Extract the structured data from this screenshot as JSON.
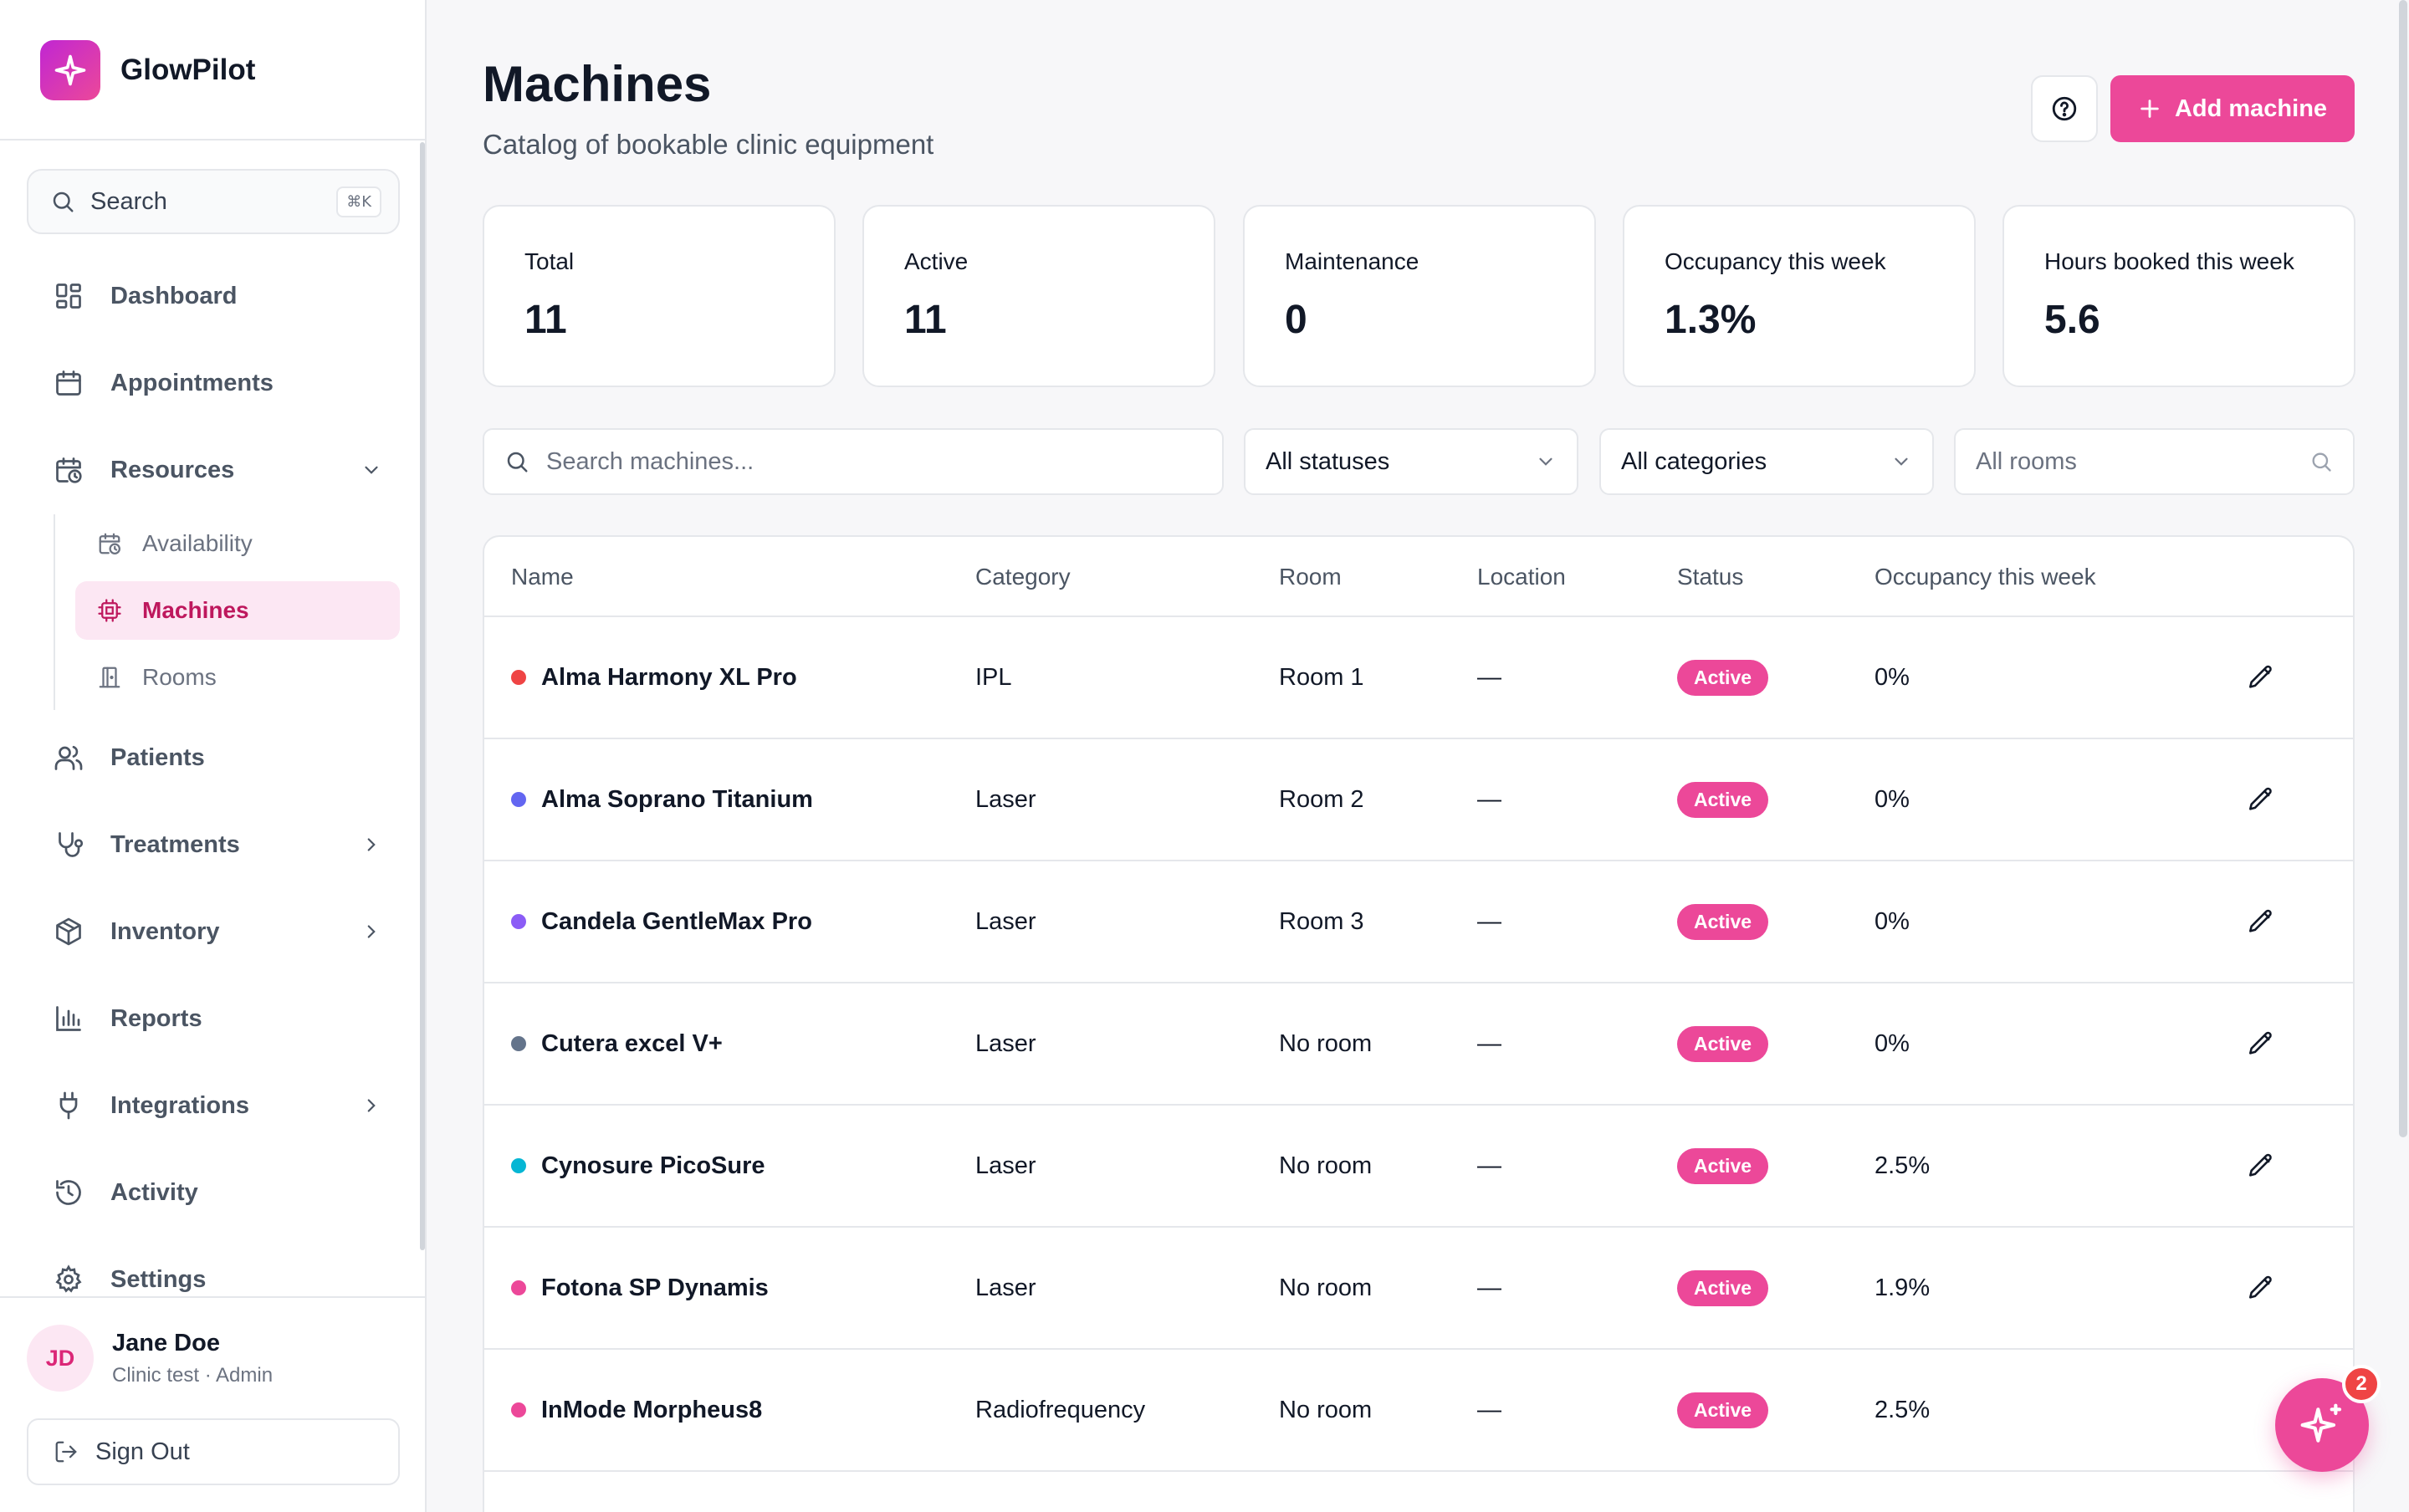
{
  "app": {
    "name": "GlowPilot"
  },
  "sidebar": {
    "search": {
      "label": "Search",
      "shortcut": "⌘K"
    },
    "items": [
      {
        "label": "Dashboard",
        "icon": "dashboard-icon"
      },
      {
        "label": "Appointments",
        "icon": "calendar-icon"
      },
      {
        "label": "Resources",
        "icon": "calendar-clock-icon",
        "expanded": true
      },
      {
        "label": "Patients",
        "icon": "users-icon"
      },
      {
        "label": "Treatments",
        "icon": "stethoscope-icon"
      },
      {
        "label": "Inventory",
        "icon": "package-icon"
      },
      {
        "label": "Reports",
        "icon": "bar-chart-icon"
      },
      {
        "label": "Integrations",
        "icon": "plug-icon"
      },
      {
        "label": "Activity",
        "icon": "history-icon"
      },
      {
        "label": "Settings",
        "icon": "gear-icon"
      }
    ],
    "resources_sub": [
      {
        "label": "Availability",
        "icon": "calendar-clock-icon"
      },
      {
        "label": "Machines",
        "icon": "cpu-icon",
        "active": true
      },
      {
        "label": "Rooms",
        "icon": "door-icon"
      }
    ],
    "user": {
      "initials": "JD",
      "name": "Jane Doe",
      "role": "Clinic test · Admin"
    },
    "signout": "Sign Out"
  },
  "header": {
    "title": "Machines",
    "subtitle": "Catalog of bookable clinic equipment",
    "add_button": "Add machine"
  },
  "stats": [
    {
      "label": "Total",
      "value": "11"
    },
    {
      "label": "Active",
      "value": "11"
    },
    {
      "label": "Maintenance",
      "value": "0"
    },
    {
      "label": "Occupancy this week",
      "value": "1.3%"
    },
    {
      "label": "Hours booked this week",
      "value": "5.6"
    }
  ],
  "filters": {
    "search_placeholder": "Search machines...",
    "status": "All statuses",
    "category": "All categories",
    "room_placeholder": "All rooms"
  },
  "table": {
    "columns": [
      "Name",
      "Category",
      "Room",
      "Location",
      "Status",
      "Occupancy this week"
    ],
    "rows": [
      {
        "name": "Alma Harmony XL Pro",
        "color": "#ef4444",
        "category": "IPL",
        "room": "Room 1",
        "location": "—",
        "status": "Active",
        "occupancy": "0%"
      },
      {
        "name": "Alma Soprano Titanium",
        "color": "#6366f1",
        "category": "Laser",
        "room": "Room 2",
        "location": "—",
        "status": "Active",
        "occupancy": "0%"
      },
      {
        "name": "Candela GentleMax Pro",
        "color": "#8b5cf6",
        "category": "Laser",
        "room": "Room 3",
        "location": "—",
        "status": "Active",
        "occupancy": "0%"
      },
      {
        "name": "Cutera excel V+",
        "color": "#64748b",
        "category": "Laser",
        "room": "No room",
        "location": "—",
        "status": "Active",
        "occupancy": "0%"
      },
      {
        "name": "Cynosure PicoSure",
        "color": "#06b6d4",
        "category": "Laser",
        "room": "No room",
        "location": "—",
        "status": "Active",
        "occupancy": "2.5%"
      },
      {
        "name": "Fotona SP Dynamis",
        "color": "#ec4899",
        "category": "Laser",
        "room": "No room",
        "location": "—",
        "status": "Active",
        "occupancy": "1.9%"
      },
      {
        "name": "InMode Morpheus8",
        "color": "#ec4899",
        "category": "Radiofrequency",
        "room": "No room",
        "location": "—",
        "status": "Active",
        "occupancy": "2.5%"
      }
    ]
  },
  "assistant": {
    "badge_count": "2"
  },
  "colors": {
    "accent": "#ec4899",
    "accent_soft": "#fce7f3",
    "border": "#e5e7eb",
    "muted_text": "#4b5563"
  }
}
